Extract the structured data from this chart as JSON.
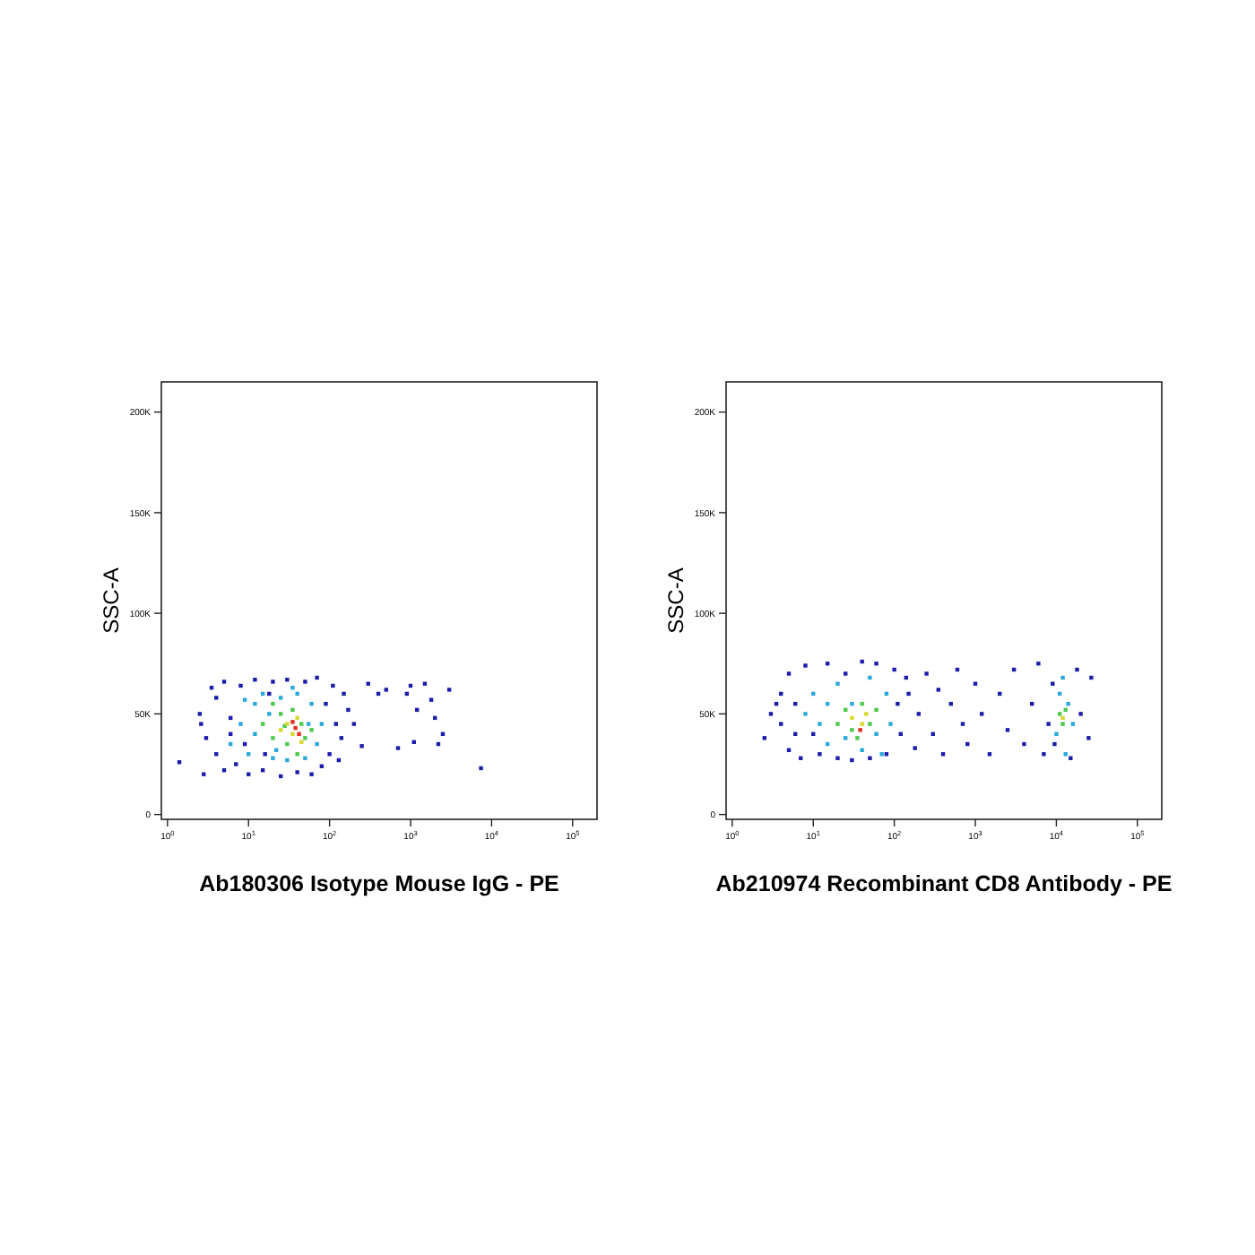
{
  "chart_data": [
    {
      "type": "scatter",
      "xlabel": "Ab180306 Isotype Mouse IgG - PE",
      "ylabel": "SSC-A",
      "log": "x",
      "marker": "square",
      "grid": false,
      "xlim": [
        0.84,
        200000
      ],
      "ylim": [
        -2400,
        215000
      ],
      "xticks": [
        {
          "value": 1,
          "label": "10$^{0}$"
        },
        {
          "value": 10,
          "label": "10$^{1}$"
        },
        {
          "value": 100,
          "label": "10$^{2}$"
        },
        {
          "value": 1000,
          "label": "10$^{3}$"
        },
        {
          "value": 10000,
          "label": "10$^{4}$"
        },
        {
          "value": 100000,
          "label": "10$^{5}$"
        }
      ],
      "yticks": [
        {
          "value": 0,
          "label": "0"
        },
        {
          "value": 50000,
          "label": "50K"
        },
        {
          "value": 100000,
          "label": "100K"
        },
        {
          "value": 150000,
          "label": "150K"
        },
        {
          "value": 200000,
          "label": "200K"
        }
      ],
      "series": [
        {
          "color": "#1c1ca8",
          "x": [
            1.4,
            2.5,
            2.6,
            3,
            2.8,
            3.5,
            4,
            4,
            5,
            5,
            6,
            7,
            8,
            10,
            12,
            15,
            20,
            25,
            30,
            40,
            50,
            60,
            70,
            80,
            90,
            100,
            110,
            120,
            140,
            150,
            170,
            200,
            250,
            300,
            400,
            500,
            700,
            900,
            1100,
            1200,
            1500,
            1800,
            2000,
            2500,
            3000,
            2200,
            7400,
            1000,
            130,
            9,
            6,
            16,
            18
          ],
          "values": [
            26000,
            50000,
            45000,
            38000,
            20000,
            63000,
            30000,
            58000,
            22000,
            66000,
            48000,
            25000,
            64000,
            20000,
            67000,
            22000,
            66000,
            19000,
            67000,
            21000,
            66000,
            20000,
            68000,
            24000,
            55000,
            30000,
            64000,
            45000,
            38000,
            60000,
            52000,
            45000,
            34000,
            65000,
            60000,
            62000,
            33000,
            60000,
            36000,
            52000,
            65000,
            57000,
            48000,
            40000,
            62000,
            35000,
            23000,
            64000,
            27000,
            35000,
            40000,
            30000,
            60000
          ]
        },
        {
          "color": "#2aa8d8",
          "x": [
            8,
            10,
            12,
            15,
            12,
            20,
            18,
            25,
            30,
            40,
            50,
            60,
            70,
            80,
            6,
            9,
            55,
            35,
            22
          ],
          "values": [
            45000,
            30000,
            55000,
            60000,
            40000,
            28000,
            50000,
            58000,
            27000,
            60000,
            28000,
            55000,
            35000,
            45000,
            35000,
            57000,
            45000,
            63000,
            32000
          ]
        },
        {
          "color": "#4cc84c",
          "x": [
            15,
            20,
            25,
            30,
            35,
            40,
            45,
            50,
            20,
            60,
            28
          ],
          "values": [
            45000,
            38000,
            50000,
            35000,
            52000,
            30000,
            45000,
            38000,
            55000,
            42000,
            44000
          ]
        },
        {
          "color": "#d8d830",
          "x": [
            30,
            35,
            40,
            45,
            25
          ],
          "values": [
            45000,
            40000,
            48000,
            36000,
            42000
          ]
        },
        {
          "color": "#e03020",
          "x": [
            38,
            42,
            35
          ],
          "values": [
            43000,
            40000,
            46000
          ]
        }
      ]
    },
    {
      "type": "scatter",
      "xlabel": "Ab210974 Recombinant CD8 Antibody - PE",
      "ylabel": "SSC-A",
      "log": "x",
      "marker": "square",
      "grid": false,
      "xlim": [
        0.84,
        200000
      ],
      "ylim": [
        -2400,
        215000
      ],
      "xticks": [
        {
          "value": 1,
          "label": "10$^{0}$"
        },
        {
          "value": 10,
          "label": "10$^{1}$"
        },
        {
          "value": 100,
          "label": "10$^{2}$"
        },
        {
          "value": 1000,
          "label": "10$^{3}$"
        },
        {
          "value": 10000,
          "label": "10$^{4}$"
        },
        {
          "value": 100000,
          "label": "10$^{5}$"
        }
      ],
      "yticks": [
        {
          "value": 0,
          "label": "0"
        },
        {
          "value": 50000,
          "label": "50K"
        },
        {
          "value": 100000,
          "label": "100K"
        },
        {
          "value": 150000,
          "label": "150K"
        },
        {
          "value": 200000,
          "label": "200K"
        }
      ],
      "series": [
        {
          "color": "#1c1ca8",
          "x": [
            2.5,
            3,
            4,
            4,
            5,
            5,
            6,
            7,
            8,
            10,
            12,
            15,
            20,
            25,
            30,
            40,
            50,
            60,
            80,
            100,
            120,
            150,
            180,
            200,
            250,
            300,
            350,
            400,
            500,
            600,
            700,
            800,
            1000,
            1200,
            1500,
            2000,
            2500,
            3000,
            4000,
            5000,
            6000,
            7000,
            8000,
            9000,
            15000,
            18000,
            20000,
            25000,
            27000,
            9500,
            140,
            110,
            6,
            3.5
          ],
          "values": [
            38000,
            50000,
            45000,
            60000,
            32000,
            70000,
            55000,
            28000,
            74000,
            40000,
            30000,
            75000,
            28000,
            70000,
            27000,
            76000,
            28000,
            75000,
            30000,
            72000,
            40000,
            60000,
            33000,
            50000,
            70000,
            40000,
            62000,
            30000,
            55000,
            72000,
            45000,
            35000,
            65000,
            50000,
            30000,
            60000,
            42000,
            72000,
            35000,
            55000,
            75000,
            30000,
            45000,
            65000,
            28000,
            72000,
            50000,
            38000,
            68000,
            35000,
            68000,
            55000,
            40000,
            55000
          ]
        },
        {
          "color": "#2aa8d8",
          "x": [
            8,
            10,
            12,
            15,
            20,
            25,
            30,
            40,
            50,
            60,
            80,
            90,
            70,
            10000,
            11000,
            13000,
            14000,
            16000,
            12000,
            15
          ],
          "values": [
            50000,
            60000,
            45000,
            35000,
            65000,
            38000,
            55000,
            32000,
            68000,
            40000,
            60000,
            45000,
            30000,
            40000,
            60000,
            30000,
            55000,
            45000,
            68000,
            55000
          ]
        },
        {
          "color": "#4cc84c",
          "x": [
            20,
            25,
            30,
            40,
            50,
            60,
            35,
            11000,
            12000,
            13000
          ],
          "values": [
            45000,
            52000,
            42000,
            55000,
            45000,
            52000,
            38000,
            50000,
            45000,
            52000
          ]
        },
        {
          "color": "#d8d830",
          "x": [
            30,
            40,
            45,
            12000
          ],
          "values": [
            48000,
            45000,
            50000,
            48000
          ]
        },
        {
          "color": "#e03020",
          "x": [
            38
          ],
          "values": [
            42000
          ]
        }
      ]
    }
  ]
}
